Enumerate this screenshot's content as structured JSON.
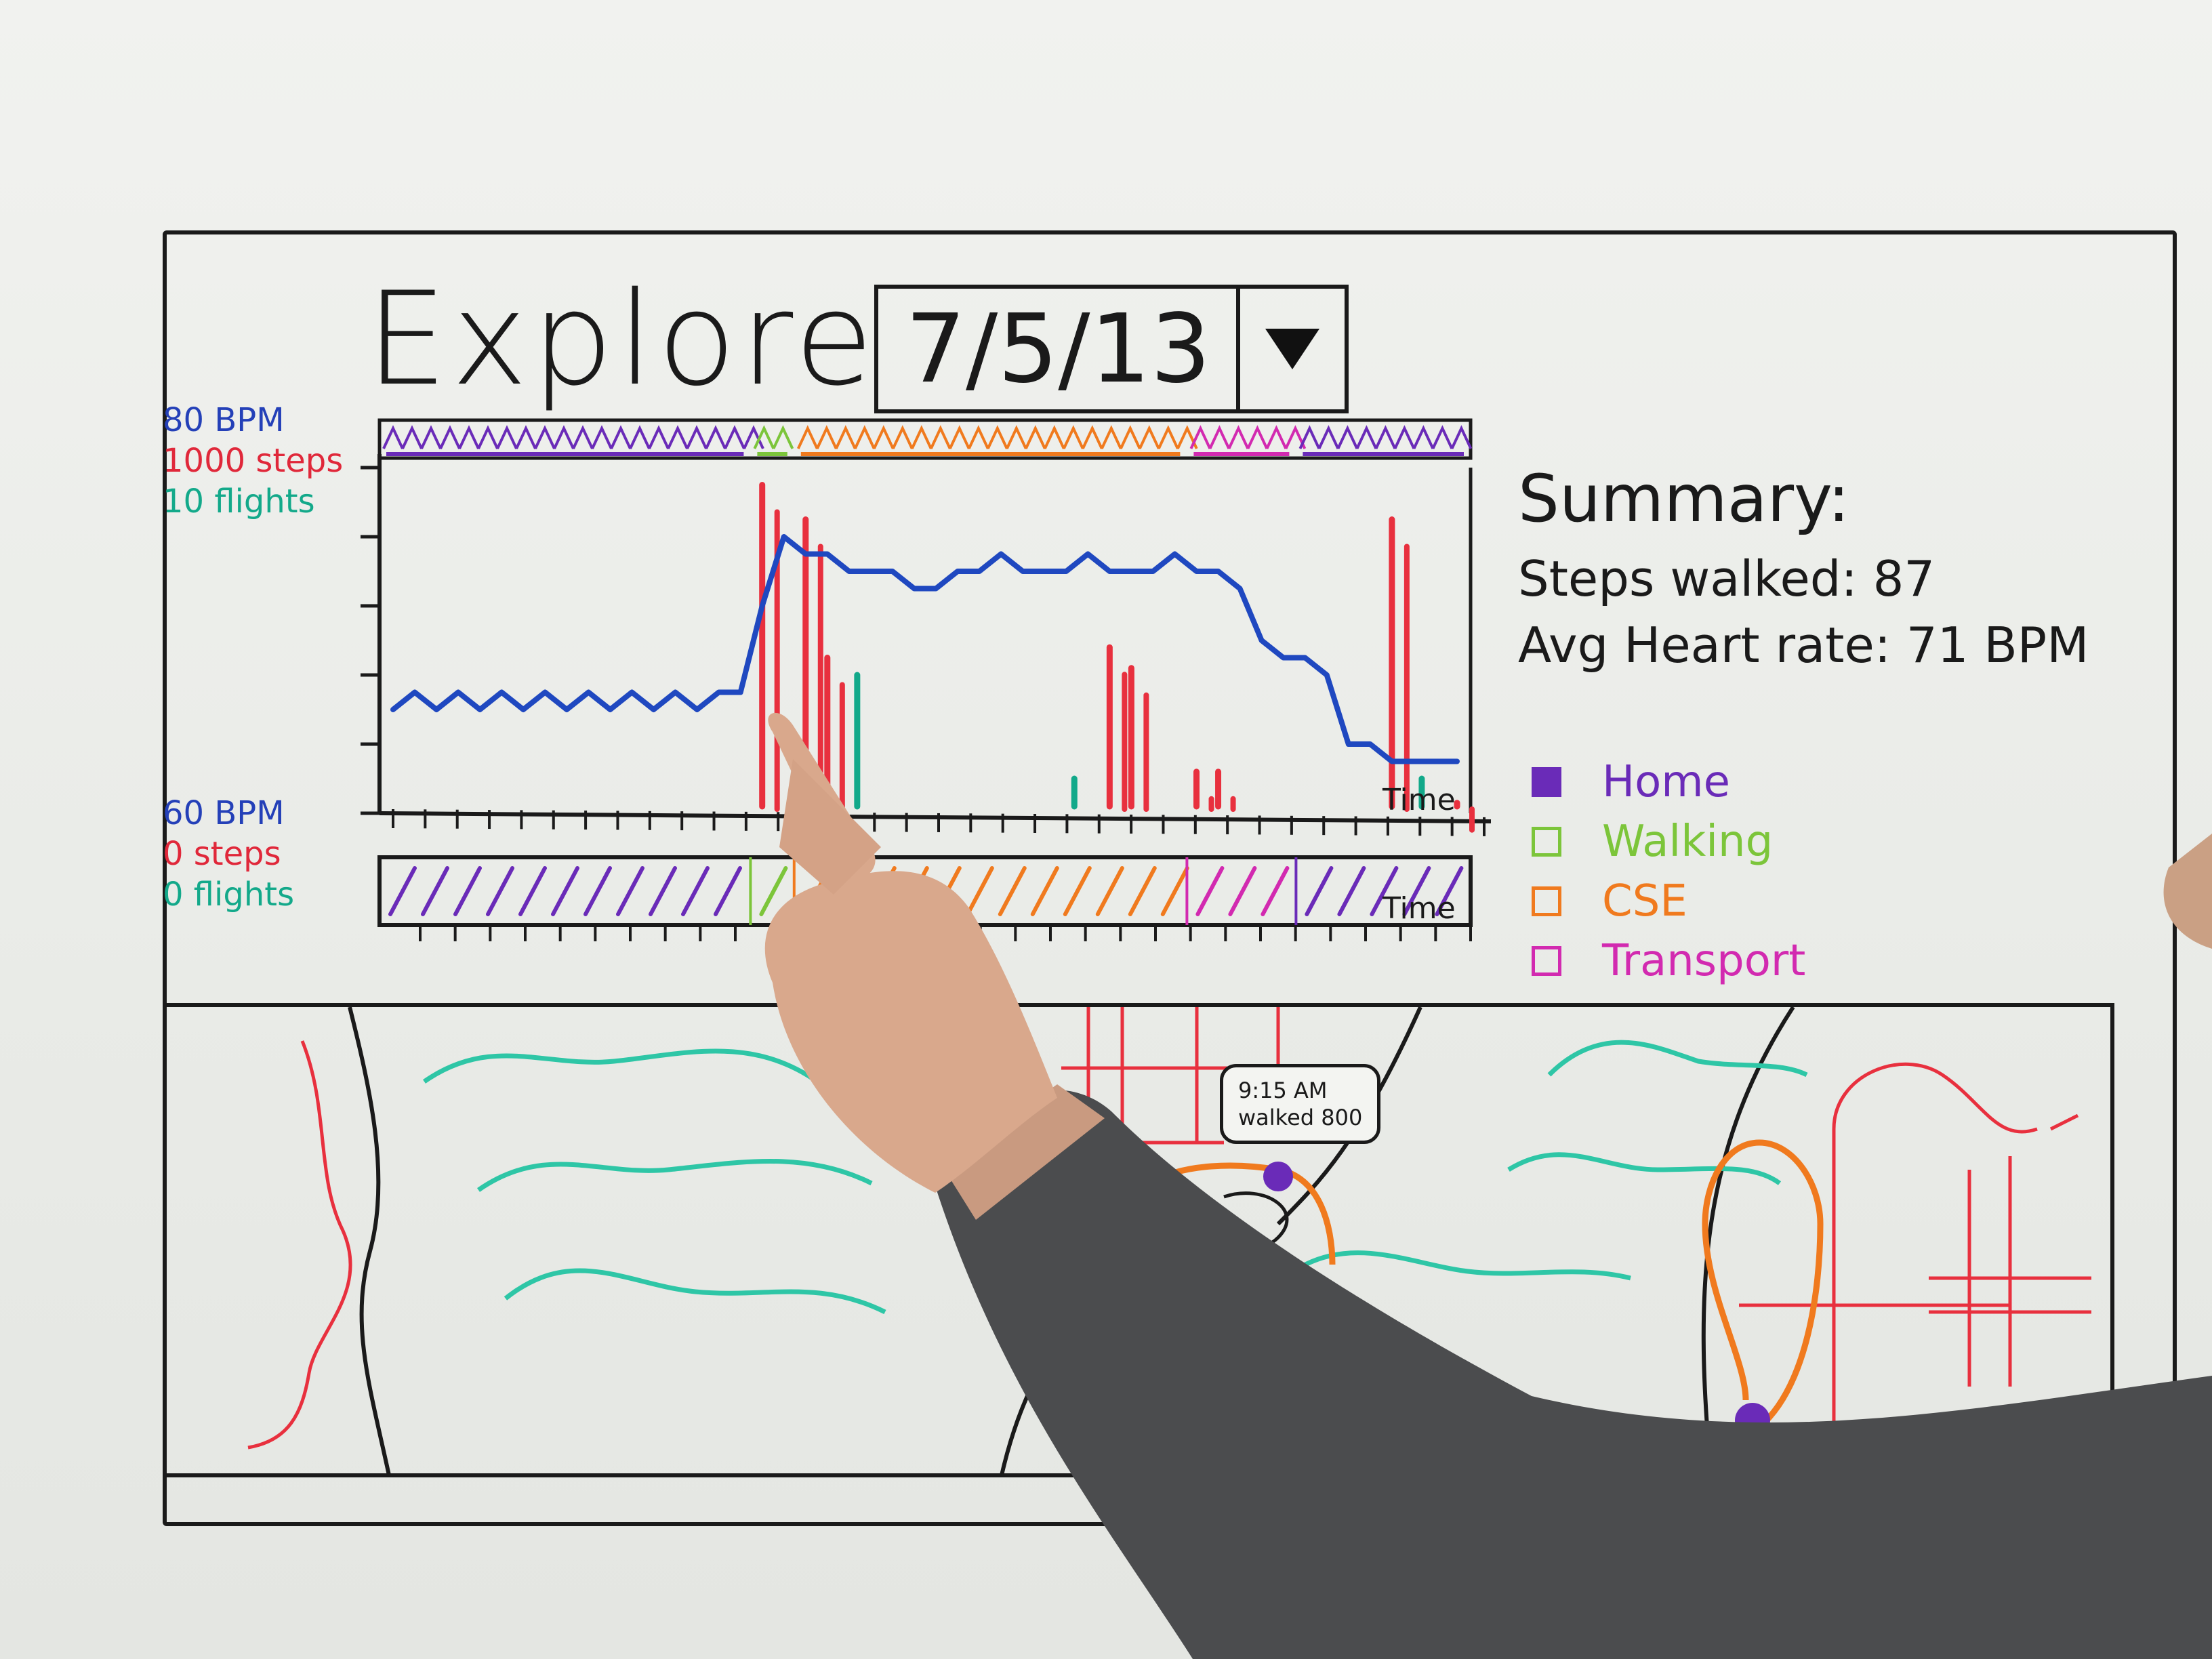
{
  "page": {
    "title": "Explore"
  },
  "date_picker": {
    "value": "7/5/13"
  },
  "axis_top_labels": [
    {
      "text": "80 BPM",
      "color": "#2440b8"
    },
    {
      "text": "1000 steps",
      "color": "#e0283a"
    },
    {
      "text": "10 flights",
      "color": "#13a98a"
    }
  ],
  "axis_bottom_labels": [
    {
      "text": "60 BPM",
      "color": "#2440b8"
    },
    {
      "text": "0 steps",
      "color": "#e0283a"
    },
    {
      "text": "0 flights",
      "color": "#13a98a"
    }
  ],
  "chart": {
    "x_label": "Time",
    "timeline_label": "Time"
  },
  "summary": {
    "title": "Summary:",
    "steps_walked": "Steps walked: 87",
    "avg_heart_rate": "Avg Heart rate: 71 BPM"
  },
  "legend": [
    {
      "label": "Home",
      "color": "#6a2bb8"
    },
    {
      "label": "Walking",
      "color": "#7cc53a"
    },
    {
      "label": "CSE",
      "color": "#f07a1e"
    },
    {
      "label": "Transport",
      "color": "#d22ab0"
    }
  ],
  "map": {
    "callout_time": "9:15 AM",
    "callout_text": "walked 800"
  },
  "colors": {
    "heart_rate": "#1f48c0",
    "steps": "#e8303e",
    "flights": "#12a98a",
    "ink": "#1a1a1a",
    "water": "#2ec6a6",
    "road": "#e8303e",
    "route": "#f07a1e",
    "place": "#6a2bb8"
  },
  "chart_data": {
    "type": "line",
    "x_label": "Time",
    "y_range_top": [
      "80 BPM",
      "1000 steps",
      "10 flights"
    ],
    "y_range_bottom": [
      "60 BPM",
      "0 steps",
      "0 flights"
    ],
    "series": [
      {
        "name": "heart rate",
        "values": [
          66,
          67,
          66,
          67,
          66,
          67,
          66,
          67,
          66,
          67,
          66,
          67,
          66,
          67,
          66,
          67,
          67,
          72,
          76,
          75,
          75,
          74,
          74,
          74,
          73,
          73,
          74,
          74,
          75,
          74,
          74,
          74,
          75,
          74,
          74,
          74,
          75,
          74,
          74,
          73,
          70,
          69,
          69,
          68,
          64,
          64,
          63,
          63,
          63,
          63
        ]
      },
      {
        "name": "steps",
        "values": [
          0,
          0,
          0,
          0,
          0,
          0,
          0,
          0,
          0,
          0,
          0,
          0,
          0,
          0,
          0,
          0,
          0,
          950,
          0,
          850,
          450,
          0,
          0,
          0,
          0,
          0,
          0,
          0,
          0,
          0,
          0,
          0,
          0,
          480,
          420,
          0,
          0,
          120,
          120,
          0,
          0,
          0,
          0,
          0,
          0,
          0,
          850,
          0,
          0,
          30
        ]
      },
      {
        "name": "flights",
        "values": [
          0,
          0,
          0,
          0,
          0,
          0,
          0,
          0,
          0,
          0,
          0,
          0,
          0,
          0,
          0,
          0,
          0,
          0,
          0,
          0,
          0,
          4,
          0,
          0,
          0,
          0,
          0,
          0,
          0,
          0,
          0,
          1,
          0,
          0,
          0,
          0,
          0,
          0,
          0,
          0,
          0,
          0,
          0,
          0,
          0,
          0,
          0,
          1,
          0,
          0
        ]
      }
    ],
    "timeline": [
      {
        "activity": "Home",
        "start": 0,
        "end": 0.34
      },
      {
        "activity": "Walking",
        "start": 0.34,
        "end": 0.38
      },
      {
        "activity": "CSE",
        "start": 0.38,
        "end": 0.74
      },
      {
        "activity": "Transport",
        "start": 0.74,
        "end": 0.84
      },
      {
        "activity": "Home",
        "start": 0.84,
        "end": 1.0
      }
    ]
  }
}
